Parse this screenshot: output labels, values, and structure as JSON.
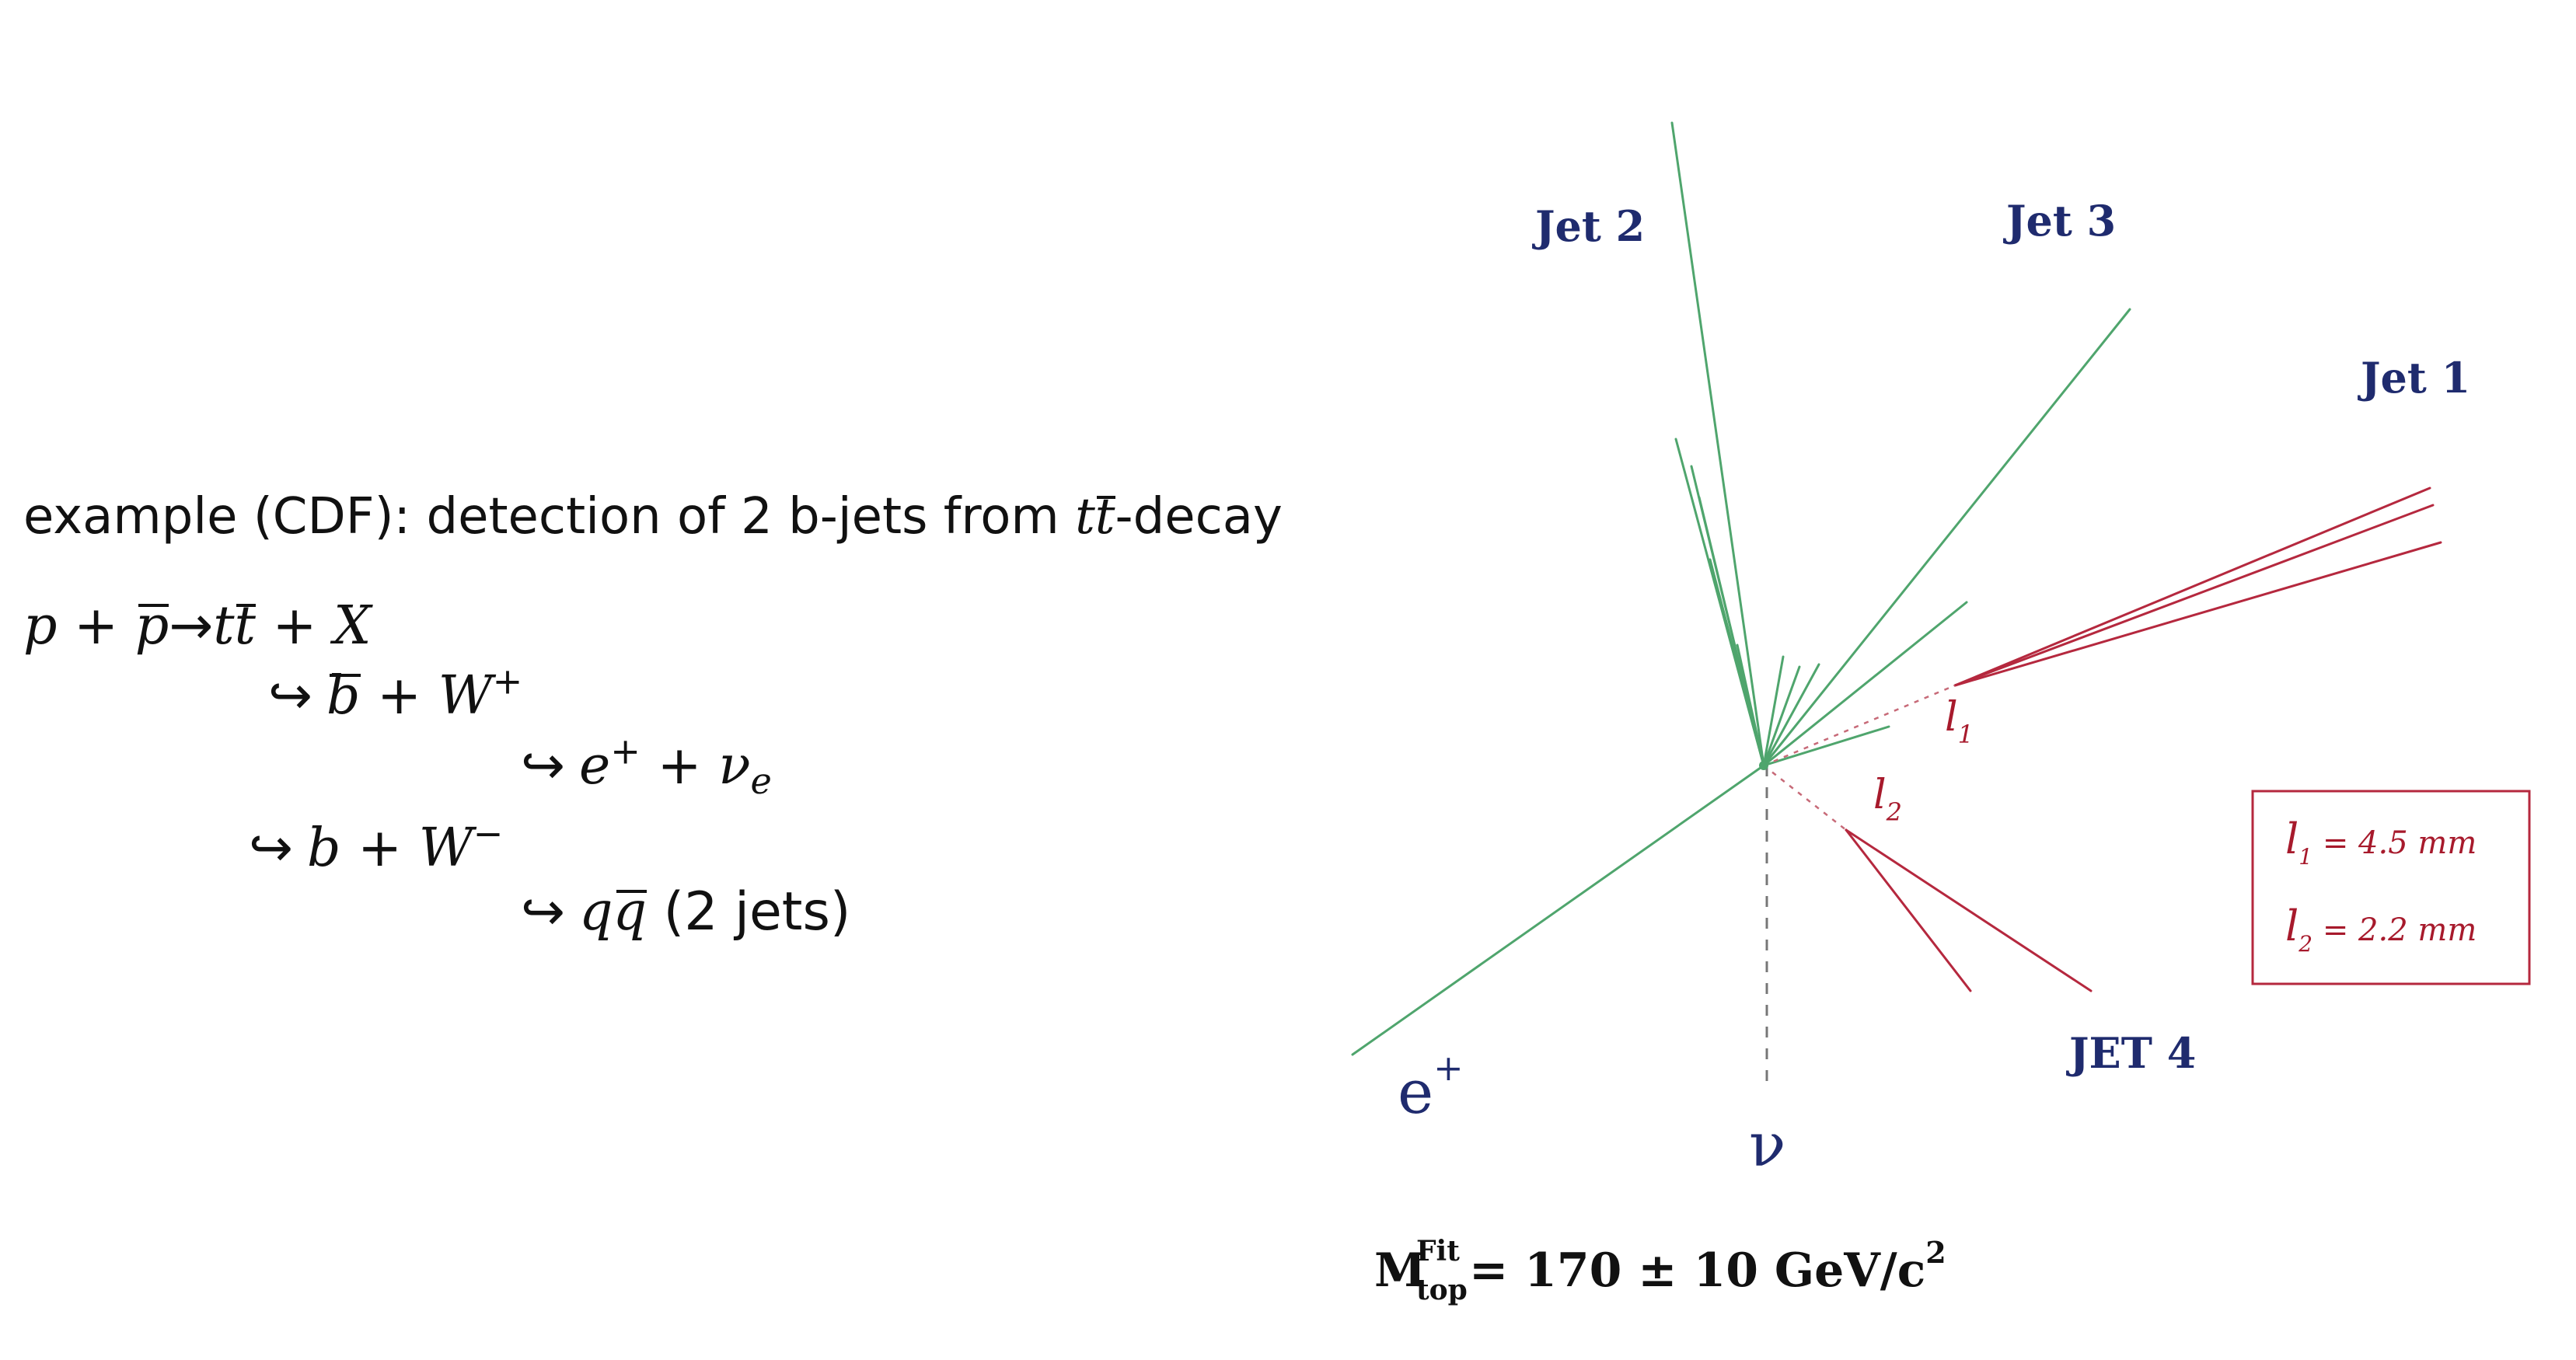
{
  "description": {
    "intro_prefix": "example (CDF): detection of 2 b-jets from ",
    "intro_symbol_t": "t",
    "intro_symbol_tbar": "t",
    "intro_suffix": "-decay"
  },
  "decay_chain": {
    "line1": {
      "p": "p",
      "plus1": " + ",
      "pbar": "p",
      "arrow": "→",
      "t": "t",
      "tbar": "t",
      "plus2": " + ",
      "x": "X"
    },
    "line2": {
      "arrow": "↪",
      "bbar": "b",
      "plus": " + ",
      "w": "W",
      "charge": "+"
    },
    "line3": {
      "arrow": "↪",
      "e": "e",
      "charge": "+",
      "plus": " + ",
      "nu": "ν",
      "nu_sub": "e"
    },
    "line4": {
      "arrow": "↪",
      "b": "b",
      "plus": " + ",
      "w": "W",
      "charge": "−"
    },
    "line5": {
      "arrow": "↪",
      "q": "q",
      "qbar": "q",
      "jets": " (2 jets)"
    }
  },
  "event_display": {
    "jet_labels": {
      "jet2": "Jet 2",
      "jet3": "Jet 3",
      "jet1": "Jet 1",
      "jet4": "JET 4"
    },
    "decay_labels": {
      "l1": "l",
      "l1_sub": "1",
      "l2": "l",
      "l2_sub": "2"
    },
    "legend": {
      "entry1": {
        "symbol": "l",
        "sub": "1",
        "value": " = 4.5 mm"
      },
      "entry2": {
        "symbol": "l",
        "sub": "2",
        "value": " = 2.2 mm"
      }
    },
    "particle_labels": {
      "positron": "e",
      "positron_charge": "+",
      "neutrino": "ν"
    },
    "mass": {
      "symbol": "M",
      "superscript": "Fit",
      "subscript": "top",
      "value": " = 170 ± 10 GeV/c",
      "exponent": "2"
    },
    "colors": {
      "jet_green": "#4fa56d",
      "b_jet_red": "#b5283e",
      "label_navy": "#1f2b6e",
      "neutrino_gray": "#777777"
    }
  }
}
